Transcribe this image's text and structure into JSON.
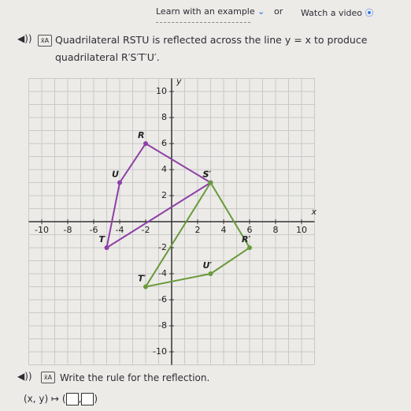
{
  "header": {
    "learn": "Learn with an example",
    "or": "or",
    "watch": "Watch a video"
  },
  "question": {
    "text": "Quadrilateral RSTU is reflected across the line y = x to produce quadrilateral R′S′T′U′."
  },
  "graph": {
    "x_label": "x",
    "y_label": "y",
    "xlim": [
      -11,
      11
    ],
    "ylim": [
      -11,
      11
    ],
    "xticks": [
      -10,
      -8,
      -6,
      -4,
      -2,
      2,
      4,
      6,
      8,
      10
    ],
    "yticks": [
      10,
      8,
      6,
      4,
      2,
      -2,
      -4,
      -6,
      -8,
      -10
    ],
    "shapes": [
      {
        "color": "#8e3fa6",
        "points": [
          {
            "label": "R",
            "x": -2,
            "y": 6
          },
          {
            "label": "S",
            "x": 3,
            "y": 3
          },
          {
            "label": "T",
            "x": -5,
            "y": -2
          },
          {
            "label": "U",
            "x": -4,
            "y": 3
          }
        ]
      },
      {
        "color": "#6a9a3a",
        "points": [
          {
            "label": "R′",
            "x": 6,
            "y": -2
          },
          {
            "label": "S′",
            "x": 3,
            "y": 3
          },
          {
            "label": "T′",
            "x": -2,
            "y": -5
          },
          {
            "label": "U′",
            "x": 3,
            "y": -4
          }
        ]
      }
    ]
  },
  "task": {
    "prompt": "Write the rule for the reflection.",
    "prefix": "(x, y) ↦ (",
    "separator": ",",
    "suffix": ")"
  }
}
